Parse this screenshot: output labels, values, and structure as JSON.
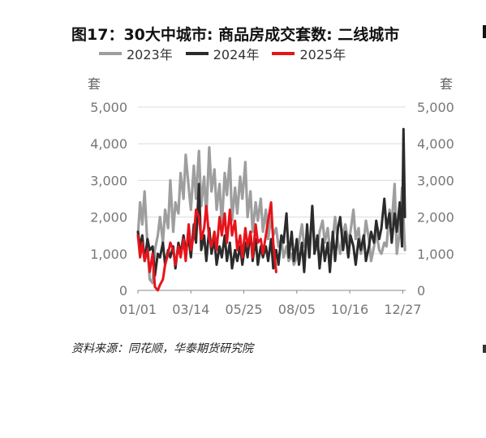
{
  "title": "图17：30大中城市: 商品房成交套数: 二线城市",
  "unit_left": "套",
  "unit_right": "套",
  "source": "资料来源：同花顺，华泰期货研究院",
  "legend": [
    {
      "name": "2023年",
      "color": "#9e9e9e"
    },
    {
      "name": "2024年",
      "color": "#2b2b2b"
    },
    {
      "name": "2025年",
      "color": "#e8131b"
    }
  ],
  "chart_data": {
    "type": "line",
    "title": "图17：30大中城市: 商品房成交套数: 二线城市",
    "xlabel": "",
    "ylabel": "套",
    "ylabel_right": "套",
    "ylim": [
      0,
      5000
    ],
    "yticks": [
      "0",
      "1,000",
      "2,000",
      "3,000",
      "4,000",
      "5,000"
    ],
    "xticks": [
      "01/01",
      "03/14",
      "05/25",
      "08/05",
      "10/16",
      "12/27"
    ],
    "xtick_days": [
      1,
      73,
      145,
      217,
      289,
      361
    ],
    "grid": "horizontal",
    "legend_position": "top",
    "series": [
      {
        "name": "2023年",
        "color": "#9e9e9e",
        "day": [
          1,
          4,
          7,
          10,
          14,
          17,
          21,
          24,
          28,
          31,
          35,
          38,
          42,
          45,
          49,
          52,
          56,
          59,
          63,
          66,
          70,
          73,
          77,
          80,
          84,
          87,
          91,
          94,
          98,
          101,
          105,
          108,
          112,
          115,
          119,
          122,
          126,
          129,
          133,
          136,
          140,
          143,
          147,
          150,
          154,
          157,
          161,
          164,
          168,
          171,
          175,
          178,
          182,
          185,
          189,
          192,
          196,
          199,
          203,
          206,
          210,
          213,
          217,
          220,
          224,
          227,
          231,
          234,
          238,
          241,
          245,
          248,
          252,
          255,
          259,
          262,
          266,
          269,
          273,
          276,
          280,
          283,
          287,
          290,
          294,
          297,
          301,
          304,
          308,
          311,
          315,
          318,
          322,
          325,
          329,
          332,
          336,
          339,
          343,
          346,
          350,
          353,
          357,
          360,
          364
        ],
        "values": [
          1500,
          2400,
          1800,
          2700,
          1200,
          300,
          200,
          1100,
          1500,
          2000,
          1300,
          2200,
          1700,
          3000,
          1600,
          2400,
          2100,
          3200,
          2500,
          3700,
          2800,
          2200,
          3400,
          2500,
          3800,
          2300,
          3100,
          2000,
          3900,
          2700,
          3300,
          2200,
          2900,
          1800,
          3200,
          2600,
          3600,
          1900,
          2800,
          2100,
          3100,
          2500,
          3500,
          2000,
          2700,
          1600,
          2400,
          1900,
          2500,
          1600,
          2200,
          1400,
          2000,
          1500,
          1700,
          1200,
          1400,
          900,
          1200,
          800,
          1000,
          700,
          900,
          1300,
          1800,
          1200,
          1500,
          900,
          2300,
          1300,
          1100,
          1600,
          1900,
          1300,
          1700,
          1100,
          1400,
          2000,
          1300,
          1000,
          1600,
          1800,
          1300,
          1600,
          2200,
          1400,
          1700,
          1000,
          1300,
          1900,
          1400,
          800,
          1200,
          1600,
          1100,
          1000,
          1300,
          1200,
          2200,
          1800,
          2900,
          1000,
          1600,
          2800,
          1100
        ]
      },
      {
        "name": "2024年",
        "color": "#2b2b2b",
        "day": [
          1,
          4,
          7,
          10,
          14,
          17,
          21,
          24,
          28,
          31,
          35,
          38,
          42,
          45,
          49,
          52,
          56,
          59,
          63,
          66,
          70,
          73,
          77,
          80,
          84,
          87,
          91,
          94,
          98,
          101,
          105,
          108,
          112,
          115,
          119,
          122,
          126,
          129,
          133,
          136,
          140,
          143,
          147,
          150,
          154,
          157,
          161,
          164,
          168,
          171,
          175,
          178,
          182,
          185,
          189,
          192,
          196,
          199,
          203,
          206,
          210,
          213,
          217,
          220,
          224,
          227,
          231,
          234,
          238,
          241,
          245,
          248,
          252,
          255,
          259,
          262,
          266,
          269,
          273,
          276,
          280,
          283,
          287,
          290,
          294,
          297,
          301,
          304,
          308,
          311,
          315,
          318,
          322,
          325,
          329,
          332,
          336,
          339,
          343,
          346,
          350,
          353,
          357,
          360,
          362,
          364
        ],
        "values": [
          1600,
          1200,
          1500,
          800,
          1400,
          1100,
          1200,
          400,
          1000,
          900,
          1300,
          700,
          1100,
          900,
          1200,
          600,
          1300,
          1000,
          1500,
          1100,
          1400,
          900,
          1800,
          1300,
          2900,
          1100,
          1500,
          800,
          1700,
          1000,
          1400,
          700,
          1200,
          900,
          1500,
          800,
          1300,
          600,
          1100,
          800,
          1200,
          700,
          1300,
          900,
          1600,
          800,
          1400,
          700,
          1200,
          900,
          1200,
          800,
          1400,
          600,
          1100,
          700,
          1500,
          1300,
          2100,
          900,
          1600,
          800,
          1400,
          700,
          1300,
          500,
          1800,
          900,
          2300,
          1000,
          1500,
          600,
          1400,
          800,
          1300,
          500,
          1600,
          800,
          1700,
          2000,
          1100,
          1600,
          900,
          1500,
          1200,
          700,
          1400,
          1100,
          1500,
          800,
          1200,
          1600,
          1300,
          1900,
          1400,
          1700,
          2500,
          1700,
          2100,
          1300,
          2100,
          1600,
          2400,
          1200,
          4400,
          2000
        ]
      },
      {
        "name": "2025年",
        "color": "#e8131b",
        "day": [
          1,
          4,
          7,
          10,
          14,
          17,
          21,
          24,
          28,
          31,
          35,
          38,
          42,
          45,
          49,
          52,
          56,
          59,
          63,
          66,
          70,
          73,
          77,
          80,
          84,
          87,
          91,
          94,
          98,
          101,
          105,
          108,
          112,
          115,
          119,
          122,
          126,
          129,
          133,
          136,
          140,
          143,
          147,
          150,
          154,
          157,
          161,
          164,
          168,
          171,
          175,
          178,
          182,
          185,
          189
        ],
        "values": [
          1500,
          900,
          1300,
          800,
          1100,
          500,
          1000,
          100,
          0,
          150,
          300,
          700,
          1000,
          1300,
          1100,
          700,
          1200,
          900,
          1400,
          800,
          1800,
          1100,
          1500,
          2200,
          2000,
          1400,
          1700,
          2300,
          1400,
          1200,
          1600,
          1100,
          2000,
          1500,
          2100,
          1300,
          2200,
          1500,
          1900,
          1100,
          1500,
          900,
          1700,
          1200,
          1600,
          900,
          1800,
          1300,
          1400,
          1000,
          1500,
          1900,
          2400,
          1300,
          500
        ]
      }
    ]
  }
}
